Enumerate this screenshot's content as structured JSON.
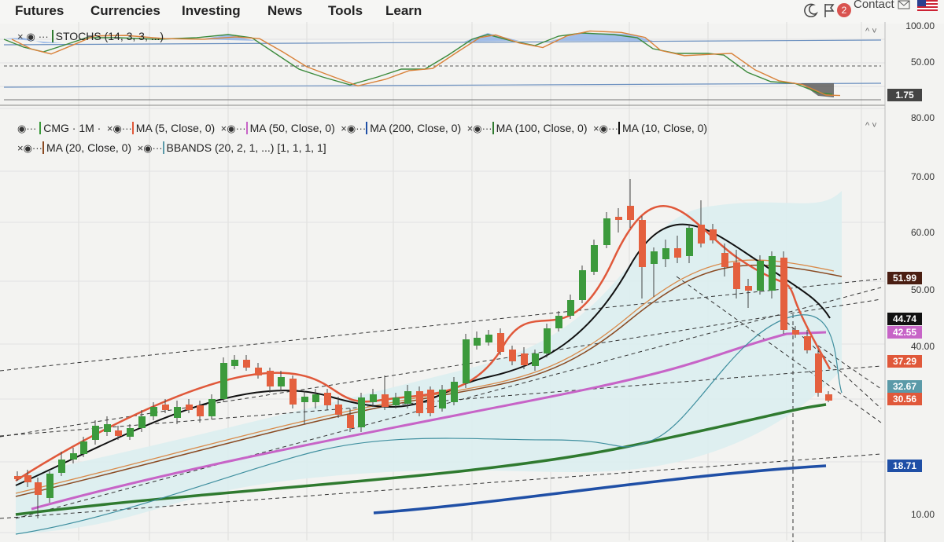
{
  "nav": {
    "items": [
      "Futures",
      "Currencies",
      "Investing",
      "News",
      "Tools",
      "Learn"
    ],
    "contact_label": "Contact",
    "notification_count": "2"
  },
  "stoch_panel": {
    "legend": "STOCHS (14, 3, 3, ...)",
    "axis_ticks": [
      "100.00",
      "50.00"
    ],
    "last_value_tag": "1.75"
  },
  "main_panel": {
    "legend_row1": [
      "CMG · 1M ·",
      "MA (5, Close, 0)",
      "MA (50, Close, 0)",
      "MA (200, Close, 0)",
      "MA (100, Close, 0)",
      "MA (10, Close, 0)"
    ],
    "legend_row2": [
      "MA (20, Close, 0)",
      "BBANDS (20, 2, 1, ...) [1, 1, 1, 1]"
    ],
    "axis_ticks": [
      "80.00",
      "70.00",
      "60.00",
      "50.00",
      "40.00",
      "10.00"
    ],
    "price_tags": [
      {
        "value": "51.99",
        "color": "#4a1e12"
      },
      {
        "value": "44.74",
        "color": "#111111"
      },
      {
        "value": "42.55",
        "color": "#c764c7"
      },
      {
        "value": "37.29",
        "color": "#e0583a"
      },
      {
        "value": "32.67",
        "color": "#5b9aa8"
      },
      {
        "value": "30.56",
        "color": "#e0583a"
      },
      {
        "value": "18.71",
        "color": "#1f4fa6"
      }
    ]
  },
  "colors": {
    "up_candle": "#3c9a3c",
    "down_candle": "#e4603e",
    "ma5": "#e0583a",
    "ma10": "#111111",
    "ma20": "#8a4a22",
    "ma50": "#c764c7",
    "ma100": "#2f7a2f",
    "ma200": "#1f4fa6",
    "bb_fill": "#dbeef0",
    "stoch_k": "#3c8a3c",
    "stoch_d": "#d9823a"
  },
  "icons": [
    "moon-icon",
    "flag-icon",
    "mail-icon",
    "us-flag-icon",
    "eye-icon",
    "close-icon",
    "collapse-icon"
  ]
}
